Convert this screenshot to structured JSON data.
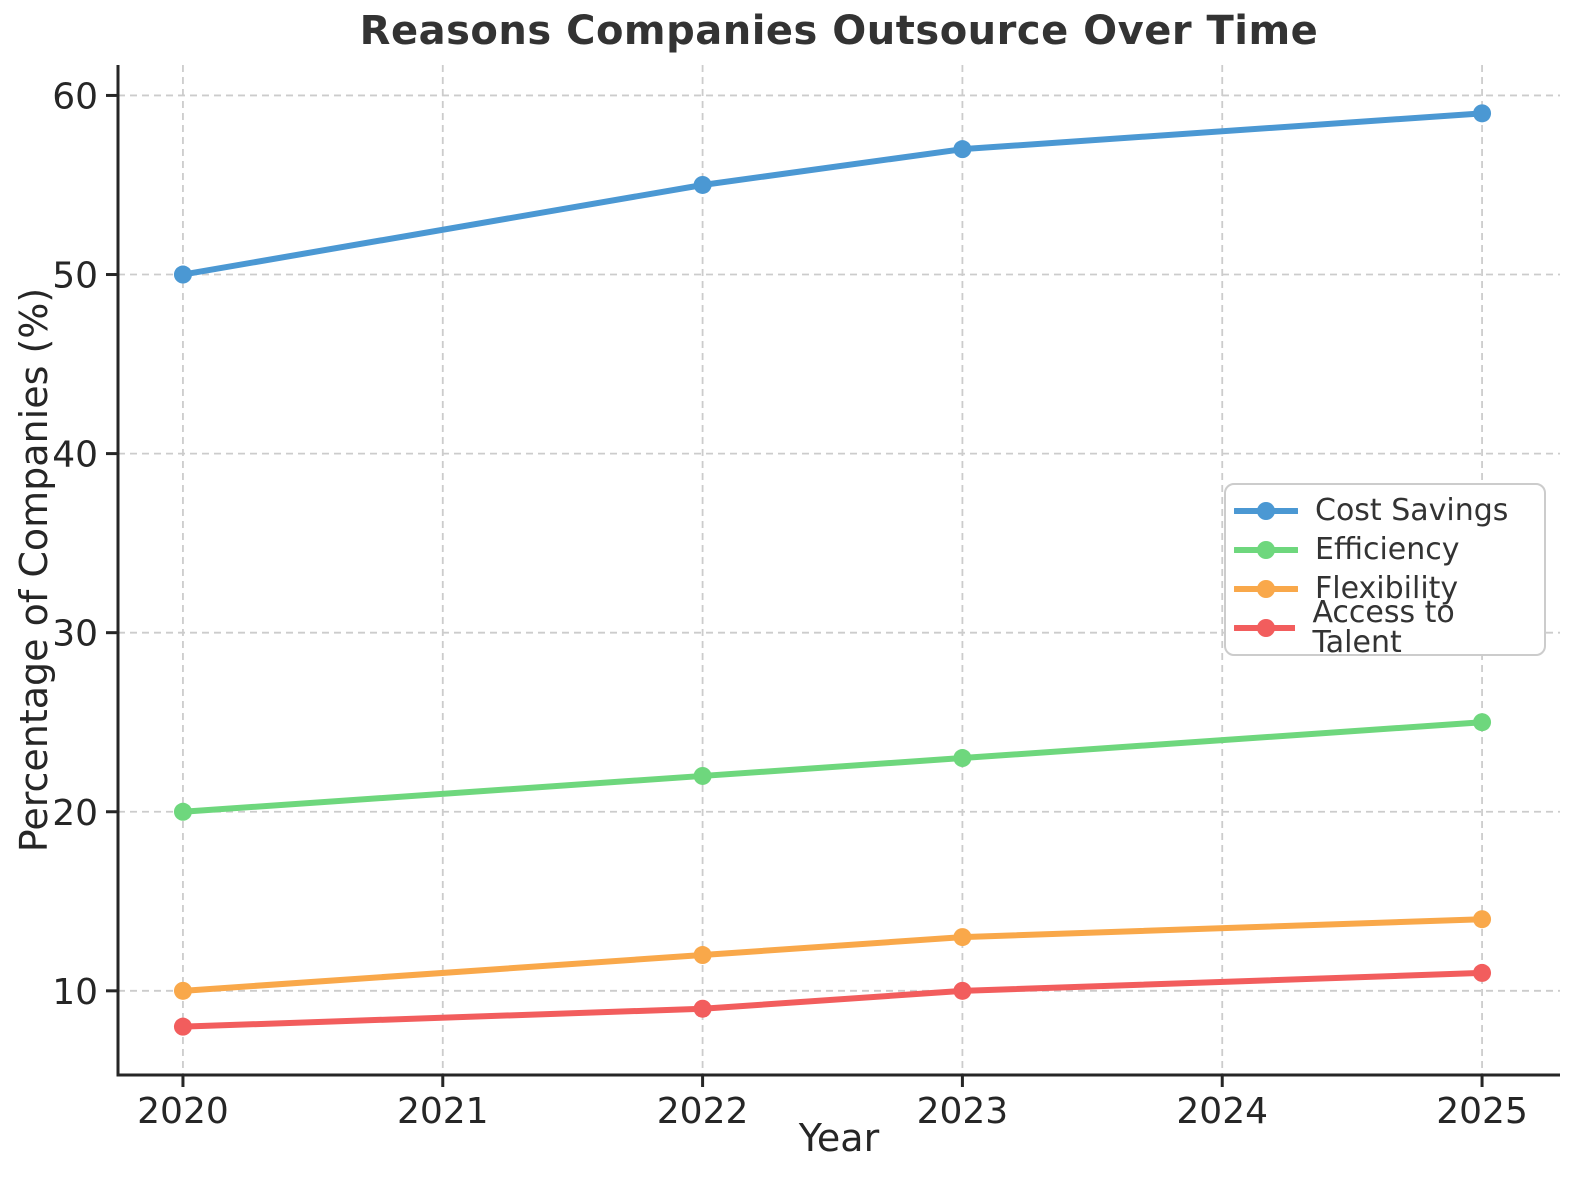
{
  "chart_data": {
    "type": "line",
    "title": "Reasons Companies Outsource Over Time",
    "xlabel": "Year",
    "ylabel": "Percentage of Companies (%)",
    "x": [
      2020,
      2022,
      2023,
      2025
    ],
    "series": [
      {
        "name": "Cost Savings",
        "color": "#4B98D3",
        "values": [
          50,
          55,
          57,
          59
        ]
      },
      {
        "name": "Efficiency",
        "color": "#6ED77D",
        "values": [
          20,
          22,
          23,
          25
        ]
      },
      {
        "name": "Flexibility",
        "color": "#F9A84A",
        "values": [
          10,
          12,
          13,
          14
        ]
      },
      {
        "name": "Access to Talent",
        "color": "#F25D5D",
        "values": [
          8,
          9,
          10,
          11
        ]
      }
    ],
    "xticks": [
      2020,
      2021,
      2022,
      2023,
      2024,
      2025
    ],
    "yticks": [
      10,
      20,
      30,
      40,
      50,
      60
    ],
    "xlim": [
      2019.75,
      2025.3
    ],
    "ylim": [
      5.3,
      61.7
    ],
    "grid": true,
    "grid_style": "dashed",
    "legend_position": "center right",
    "style": {
      "background": "#ffffff",
      "grid_color": "#cccccc",
      "spine_color": "#262626",
      "tick_text_color": "#262626",
      "title_color": "#333333",
      "legend_border_color": "#cccccc",
      "legend_text_color": "#333333"
    }
  }
}
